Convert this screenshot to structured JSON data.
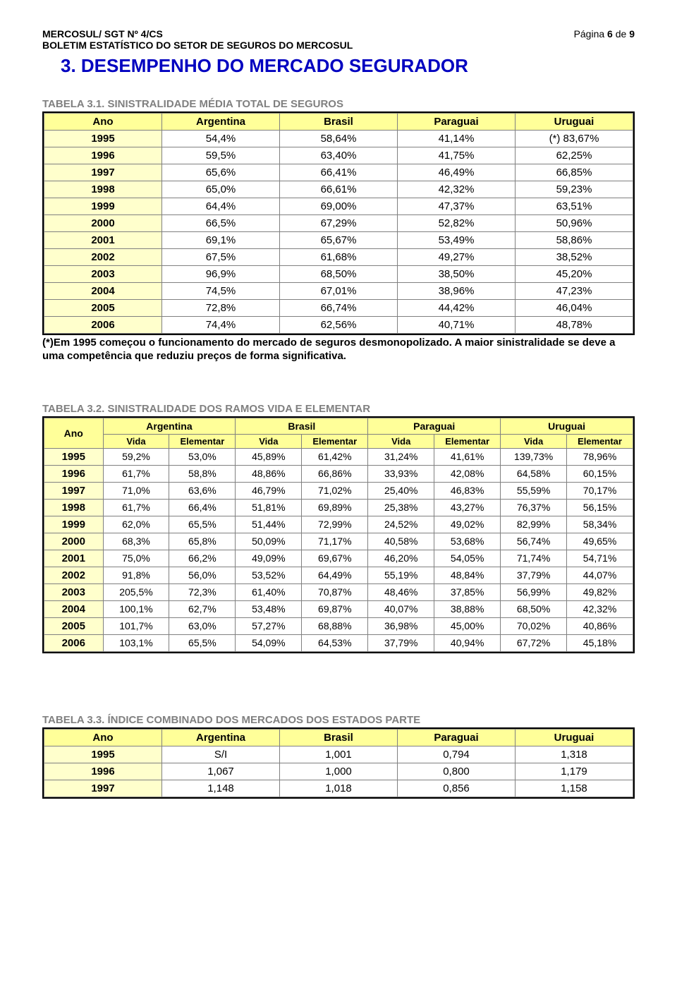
{
  "header": {
    "left1": "MERCOSUL/ SGT Nº 4/CS",
    "left2": "BOLETIM ESTATÍSTICO  DO SETOR DE SEGUROS DO MERCOSUL",
    "right_prefix": "Página ",
    "right_page": "6",
    "right_middle": " de ",
    "right_total": "9"
  },
  "section_title": "3. DESEMPENHO DO MERCADO SEGURADOR",
  "section_color": "#0000c0",
  "caption_color": "#808080",
  "row_bg_header": "#ffff99",
  "row_bg_year": "#ffffcc",
  "row_bg_data": "#ffffff",
  "table1": {
    "caption": "TABELA 3.1. SINISTRALIDADE MÉDIA TOTAL DE SEGUROS",
    "cols": [
      "Ano",
      "Argentina",
      "Brasil",
      "Paraguai",
      "Uruguai"
    ],
    "rows": [
      [
        "1995",
        "54,4%",
        "58,64%",
        "41,14%",
        "(*) 83,67%"
      ],
      [
        "1996",
        "59,5%",
        "63,40%",
        "41,75%",
        "62,25%"
      ],
      [
        "1997",
        "65,6%",
        "66,41%",
        "46,49%",
        "66,85%"
      ],
      [
        "1998",
        "65,0%",
        "66,61%",
        "42,32%",
        "59,23%"
      ],
      [
        "1999",
        "64,4%",
        "69,00%",
        "47,37%",
        "63,51%"
      ],
      [
        "2000",
        "66,5%",
        "67,29%",
        "52,82%",
        "50,96%"
      ],
      [
        "2001",
        "69,1%",
        "65,67%",
        "53,49%",
        "58,86%"
      ],
      [
        "2002",
        "67,5%",
        "61,68%",
        "49,27%",
        "38,52%"
      ],
      [
        "2003",
        "96,9%",
        "68,50%",
        "38,50%",
        "45,20%"
      ],
      [
        "2004",
        "74,5%",
        "67,01%",
        "38,96%",
        "47,23%"
      ],
      [
        "2005",
        "72,8%",
        "66,74%",
        "44,42%",
        "46,04%"
      ],
      [
        "2006",
        "74,4%",
        "62,56%",
        "40,71%",
        "48,78%"
      ]
    ],
    "note": "(*)Em 1995 começou o funcionamento do mercado de seguros desmonopolizado. A maior sinistralidade se deve a uma competência que reduziu preços de forma significativa."
  },
  "table2": {
    "caption": "TABELA 3.2. SINISTRALIDADE DOS RAMOS VIDA E ELEMENTAR",
    "cols": [
      "Ano",
      "Argentina",
      "Brasil",
      "Paraguai",
      "Uruguai"
    ],
    "sub": [
      "Vida",
      "Elementar",
      "Vida",
      "Elementar",
      "Vida",
      "Elementar",
      "Vida",
      "Elementar"
    ],
    "rows": [
      [
        "1995",
        "59,2%",
        "53,0%",
        "45,89%",
        "61,42%",
        "31,24%",
        "41,61%",
        "139,73%",
        "78,96%"
      ],
      [
        "1996",
        "61,7%",
        "58,8%",
        "48,86%",
        "66,86%",
        "33,93%",
        "42,08%",
        "64,58%",
        "60,15%"
      ],
      [
        "1997",
        "71,0%",
        "63,6%",
        "46,79%",
        "71,02%",
        "25,40%",
        "46,83%",
        "55,59%",
        "70,17%"
      ],
      [
        "1998",
        "61,7%",
        "66,4%",
        "51,81%",
        "69,89%",
        "25,38%",
        "43,27%",
        "76,37%",
        "56,15%"
      ],
      [
        "1999",
        "62,0%",
        "65,5%",
        "51,44%",
        "72,99%",
        "24,52%",
        "49,02%",
        "82,99%",
        "58,34%"
      ],
      [
        "2000",
        "68,3%",
        "65,8%",
        "50,09%",
        "71,17%",
        "40,58%",
        "53,68%",
        "56,74%",
        "49,65%"
      ],
      [
        "2001",
        "75,0%",
        "66,2%",
        "49,09%",
        "69,67%",
        "46,20%",
        "54,05%",
        "71,74%",
        "54,71%"
      ],
      [
        "2002",
        "91,8%",
        "56,0%",
        "53,52%",
        "64,49%",
        "55,19%",
        "48,84%",
        "37,79%",
        "44,07%"
      ],
      [
        "2003",
        "205,5%",
        "72,3%",
        "61,40%",
        "70,87%",
        "48,46%",
        "37,85%",
        "56,99%",
        "49,82%"
      ],
      [
        "2004",
        "100,1%",
        "62,7%",
        "53,48%",
        "69,87%",
        "40,07%",
        "38,88%",
        "68,50%",
        "42,32%"
      ],
      [
        "2005",
        "101,7%",
        "63,0%",
        "57,27%",
        "68,88%",
        "36,98%",
        "45,00%",
        "70,02%",
        "40,86%"
      ],
      [
        "2006",
        "103,1%",
        "65,5%",
        "54,09%",
        "64,53%",
        "37,79%",
        "40,94%",
        "67,72%",
        "45,18%"
      ]
    ]
  },
  "table3": {
    "caption": "TABELA 3.3. ÍNDICE COMBINADO DOS MERCADOS DOS ESTADOS PARTE",
    "cols": [
      "Ano",
      "Argentina",
      "Brasil",
      "Paraguai",
      "Uruguai"
    ],
    "rows": [
      [
        "1995",
        "S/I",
        "1,001",
        "0,794",
        "1,318"
      ],
      [
        "1996",
        "1,067",
        "1,000",
        "0,800",
        "1,179"
      ],
      [
        "1997",
        "1,148",
        "1,018",
        "0,856",
        "1,158"
      ]
    ]
  }
}
